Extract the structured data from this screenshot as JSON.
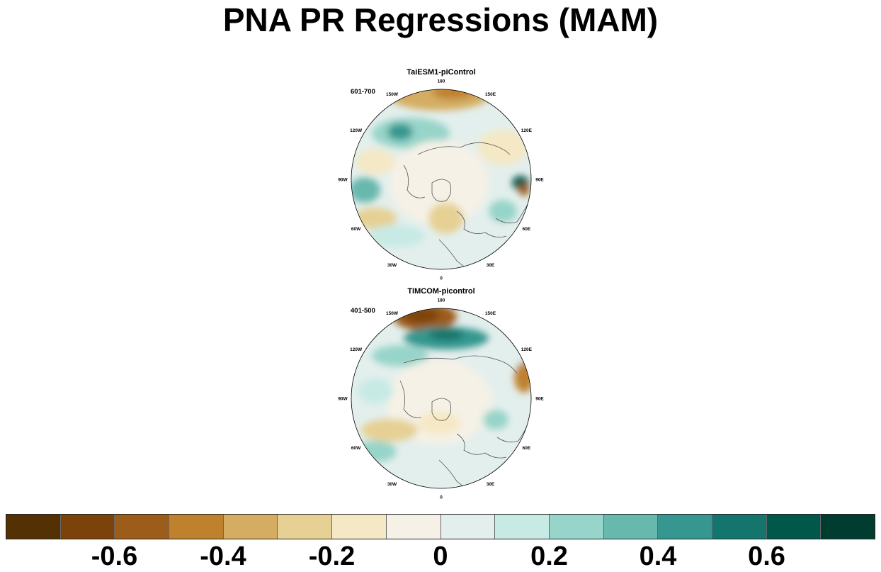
{
  "title": "PNA PR Regressions (MAM)",
  "panels": [
    {
      "title": "TaiESM1-piControl",
      "period": "601-700",
      "lon_labels": [
        "180",
        "150E",
        "120E",
        "90E",
        "60E",
        "30E",
        "0",
        "30W",
        "60W",
        "90W",
        "120W",
        "150W"
      ]
    },
    {
      "title": "TIMCOM-picontrol",
      "period": "401-500",
      "lon_labels": [
        "180",
        "150E",
        "120E",
        "90E",
        "60E",
        "30E",
        "0",
        "30W",
        "60W",
        "90W",
        "120W",
        "150W"
      ]
    }
  ],
  "colorbar": {
    "levels": [
      -0.7,
      -0.6,
      -0.5,
      -0.4,
      -0.3,
      -0.2,
      -0.1,
      0,
      0.1,
      0.2,
      0.3,
      0.4,
      0.5,
      0.6,
      0.7
    ],
    "colors": [
      "#543005",
      "#7b420b",
      "#9c5c1a",
      "#bf812d",
      "#d4ad62",
      "#e6d093",
      "#f5e8c4",
      "#f5f1e6",
      "#e3efed",
      "#c7eae5",
      "#97d4c9",
      "#67b8ad",
      "#35978f",
      "#13756b",
      "#01574a",
      "#003c30"
    ],
    "tick_labels": [
      "-0.6",
      "-0.4",
      "-0.2",
      "0",
      "0.2",
      "0.4",
      "0.6"
    ]
  }
}
